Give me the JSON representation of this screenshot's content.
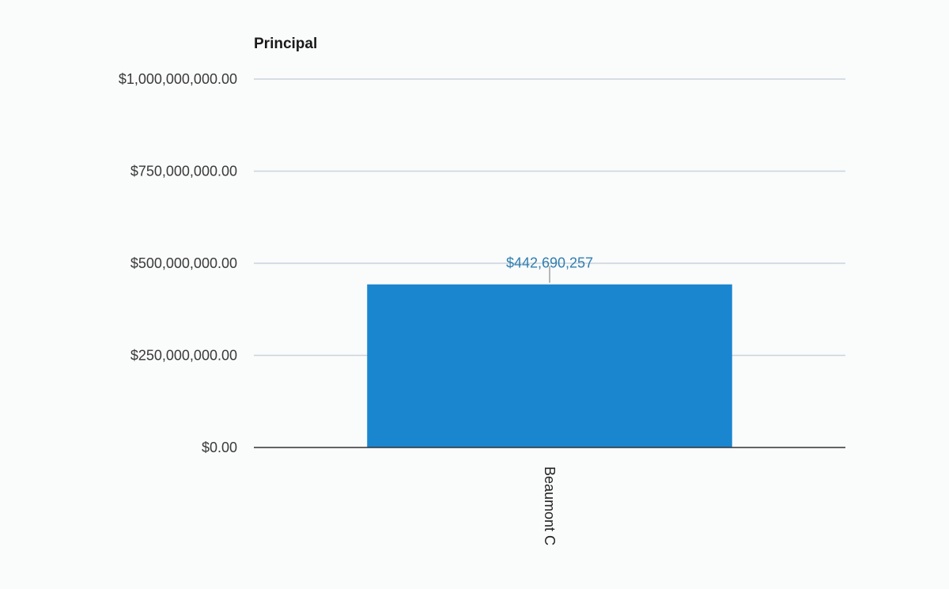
{
  "chart_data": {
    "type": "bar",
    "title": "Principal",
    "categories": [
      "Beaumont C"
    ],
    "values": [
      442690257
    ],
    "data_labels": [
      "$442,690,257"
    ],
    "ylim": [
      0,
      1000000000
    ],
    "yticks": [
      0,
      250000000,
      500000000,
      750000000,
      1000000000
    ],
    "ytick_labels": [
      "$0.00",
      "$250,000,000.00",
      "$500,000,000.00",
      "$750,000,000.00",
      "$1,000,000,000.00"
    ],
    "xlabel": "",
    "ylabel": "",
    "grid": true,
    "legend": "none",
    "bar_color": "#1a86d0",
    "label_color": "#2f7fb0",
    "grid_color": "#c9d3dc",
    "baseline_color": "#333333"
  }
}
